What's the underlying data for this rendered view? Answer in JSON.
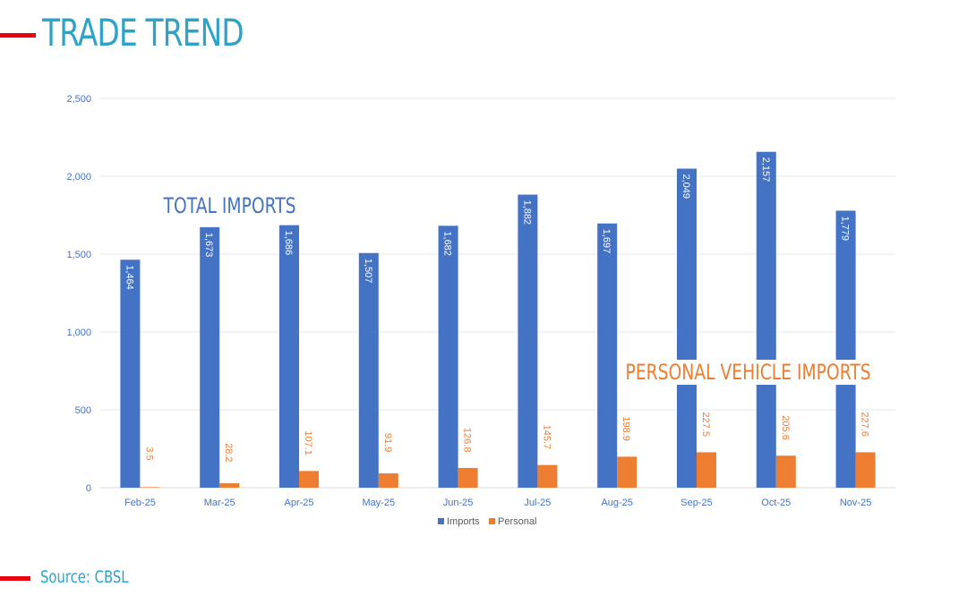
{
  "page": {
    "title": "TRADE TREND",
    "source": "Source: CBSL"
  },
  "colors": {
    "accent_red": "#e8000b",
    "title_blue": "#2ea3c9",
    "imports_blue": "#4472c4",
    "personal_orange": "#ed7d31",
    "axis_label_blue": "#4472c4",
    "gridline": "#dde8f2"
  },
  "annotations": {
    "total_imports": "TOTAL IMPORTS",
    "personal_vehicle_imports": "PERSONAL VEHICLE IMPORTS"
  },
  "chart_data": {
    "type": "bar",
    "title": "",
    "xlabel": "",
    "ylabel": "",
    "ylim": [
      0,
      2500
    ],
    "yticks": [
      0,
      500,
      1000,
      1500,
      2000,
      2500
    ],
    "ytick_labels": [
      "0",
      "500",
      "1,000",
      "1,500",
      "2,000",
      "2,500"
    ],
    "grid": true,
    "legend_position": "bottom",
    "categories": [
      "Feb-25",
      "Mar-25",
      "Apr-25",
      "May-25",
      "Jun-25",
      "Jul-25",
      "Aug-25",
      "Sep-25",
      "Oct-25",
      "Nov-25"
    ],
    "series": [
      {
        "name": "Imports",
        "values": [
          1464,
          1673,
          1686,
          1507,
          1682,
          1882,
          1697,
          2049,
          2157,
          1779
        ],
        "labels": [
          "1,464",
          "1,673",
          "1,686",
          "1,507",
          "1,682",
          "1,882",
          "1,697",
          "2,049",
          "2,157",
          "1,779"
        ]
      },
      {
        "name": "Personal",
        "values": [
          3.5,
          28.2,
          107.1,
          91.9,
          126.8,
          145.7,
          198.9,
          227.5,
          205.6,
          227.6
        ],
        "labels": [
          "3.5",
          "28.2",
          "107.1",
          "91.9",
          "126.8",
          "145.7",
          "198.9",
          "227.5",
          "205.6",
          "227.6"
        ]
      }
    ]
  }
}
